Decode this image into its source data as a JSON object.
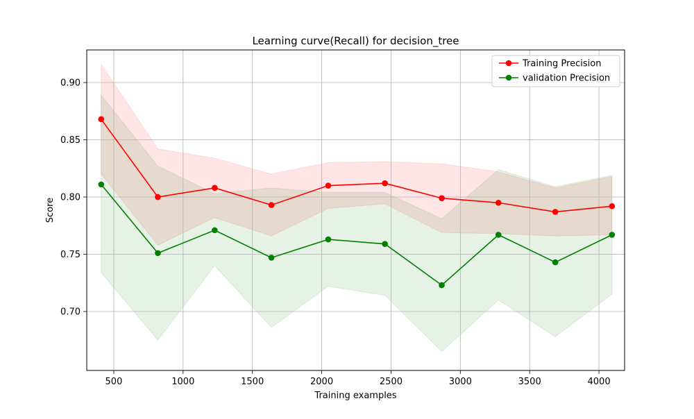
{
  "chart_data": {
    "type": "line",
    "title": "Learning curve(Recall) for decision_tree",
    "xlabel": "Training examples",
    "ylabel": "Score",
    "xlim": [
      305,
      4185
    ],
    "ylim": [
      0.6485,
      0.9285
    ],
    "xticks": [
      500,
      1000,
      1500,
      2000,
      2500,
      3000,
      3500,
      4000
    ],
    "xtick_labels": [
      "500",
      "1000",
      "1500",
      "2000",
      "2500",
      "3000",
      "3500",
      "4000"
    ],
    "yticks": [
      0.7,
      0.75,
      0.8,
      0.85,
      0.9
    ],
    "ytick_labels": [
      "0.70",
      "0.75",
      "0.80",
      "0.85",
      "0.90"
    ],
    "grid": true,
    "legend_position": "top-right",
    "x": [
      409,
      818,
      1228,
      1637,
      2047,
      2456,
      2866,
      3275,
      3685,
      4094
    ],
    "series": [
      {
        "name": "Training Precision",
        "color": "#ff0000",
        "band_color": "#ffcccc",
        "values": [
          0.868,
          0.8,
          0.808,
          0.793,
          0.81,
          0.812,
          0.799,
          0.795,
          0.787,
          0.792
        ],
        "upper": [
          0.916,
          0.842,
          0.834,
          0.82,
          0.83,
          0.831,
          0.829,
          0.822,
          0.808,
          0.818
        ],
        "lower": [
          0.82,
          0.758,
          0.782,
          0.766,
          0.79,
          0.794,
          0.769,
          0.768,
          0.766,
          0.767
        ]
      },
      {
        "name": "validation Precision",
        "color": "#008000",
        "band_color": "#c8e3c8",
        "values": [
          0.811,
          0.751,
          0.771,
          0.747,
          0.763,
          0.759,
          0.723,
          0.767,
          0.743,
          0.767
        ],
        "upper": [
          0.889,
          0.827,
          0.803,
          0.808,
          0.804,
          0.804,
          0.781,
          0.824,
          0.809,
          0.819
        ],
        "lower": [
          0.734,
          0.675,
          0.74,
          0.686,
          0.722,
          0.714,
          0.665,
          0.71,
          0.678,
          0.715
        ]
      }
    ]
  }
}
